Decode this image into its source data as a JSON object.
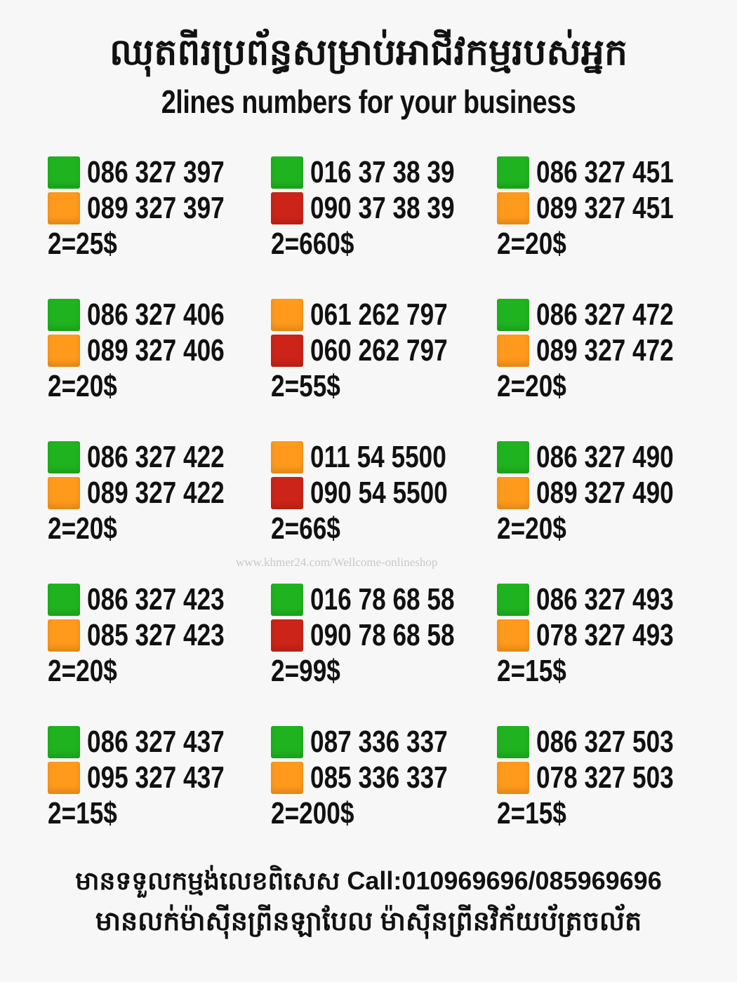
{
  "header": {
    "title_km": "ឈុតពីរប្រព័ន្ធសម្រាប់អាជីវកម្មរបស់អ្នក",
    "title_en": "2lines numbers for your business"
  },
  "colors": {
    "green": "#1fb41f",
    "orange": "#ff9a1c",
    "red": "#cc2418",
    "background": "#f7f7f7"
  },
  "sets": [
    {
      "lines": [
        {
          "number": "086 327 397",
          "color": "green"
        },
        {
          "number": "089 327 397",
          "color": "orange"
        }
      ],
      "price": "2=25$"
    },
    {
      "lines": [
        {
          "number": "016 37 38 39",
          "color": "green"
        },
        {
          "number": "090 37 38 39",
          "color": "red"
        }
      ],
      "price": "2=660$"
    },
    {
      "lines": [
        {
          "number": "086 327 451",
          "color": "green"
        },
        {
          "number": "089 327 451",
          "color": "orange"
        }
      ],
      "price": "2=20$"
    },
    {
      "lines": [
        {
          "number": "086 327 406",
          "color": "green"
        },
        {
          "number": "089 327 406",
          "color": "orange"
        }
      ],
      "price": "2=20$"
    },
    {
      "lines": [
        {
          "number": "061 262 797",
          "color": "orange"
        },
        {
          "number": "060 262 797",
          "color": "red"
        }
      ],
      "price": "2=55$"
    },
    {
      "lines": [
        {
          "number": "086 327 472",
          "color": "green"
        },
        {
          "number": "089 327 472",
          "color": "orange"
        }
      ],
      "price": "2=20$"
    },
    {
      "lines": [
        {
          "number": "086 327 422",
          "color": "green"
        },
        {
          "number": "089 327 422",
          "color": "orange"
        }
      ],
      "price": "2=20$"
    },
    {
      "lines": [
        {
          "number": "011 54 5500",
          "color": "orange"
        },
        {
          "number": "090 54 5500",
          "color": "red"
        }
      ],
      "price": "2=66$"
    },
    {
      "lines": [
        {
          "number": "086 327 490",
          "color": "green"
        },
        {
          "number": "089 327 490",
          "color": "orange"
        }
      ],
      "price": "2=20$"
    },
    {
      "lines": [
        {
          "number": "086 327 423",
          "color": "green"
        },
        {
          "number": "085 327 423",
          "color": "orange"
        }
      ],
      "price": "2=20$"
    },
    {
      "lines": [
        {
          "number": "016 78 68 58",
          "color": "green"
        },
        {
          "number": "090 78 68 58",
          "color": "red"
        }
      ],
      "price": "2=99$"
    },
    {
      "lines": [
        {
          "number": "086 327 493",
          "color": "green"
        },
        {
          "number": "078 327 493",
          "color": "orange"
        }
      ],
      "price": "2=15$"
    },
    {
      "lines": [
        {
          "number": "086 327 437",
          "color": "green"
        },
        {
          "number": "095 327 437",
          "color": "orange"
        }
      ],
      "price": "2=15$"
    },
    {
      "lines": [
        {
          "number": "087 336 337",
          "color": "green"
        },
        {
          "number": "085 336 337",
          "color": "orange"
        }
      ],
      "price": "2=200$"
    },
    {
      "lines": [
        {
          "number": "086 327 503",
          "color": "green"
        },
        {
          "number": "078 327 503",
          "color": "orange"
        }
      ],
      "price": "2=15$"
    }
  ],
  "watermark": "www.khmer24.com/Wellcome-onlineshop",
  "footer": {
    "line1": "មានទទួលកម្មង់លេខពិសេស Call:010969696/085969696",
    "line2": "មានលក់ម៉ាស៊ីនព្រីនឡាបែល ម៉ាស៊ីនព្រីនវិក័យប័ត្រចល័ត"
  }
}
